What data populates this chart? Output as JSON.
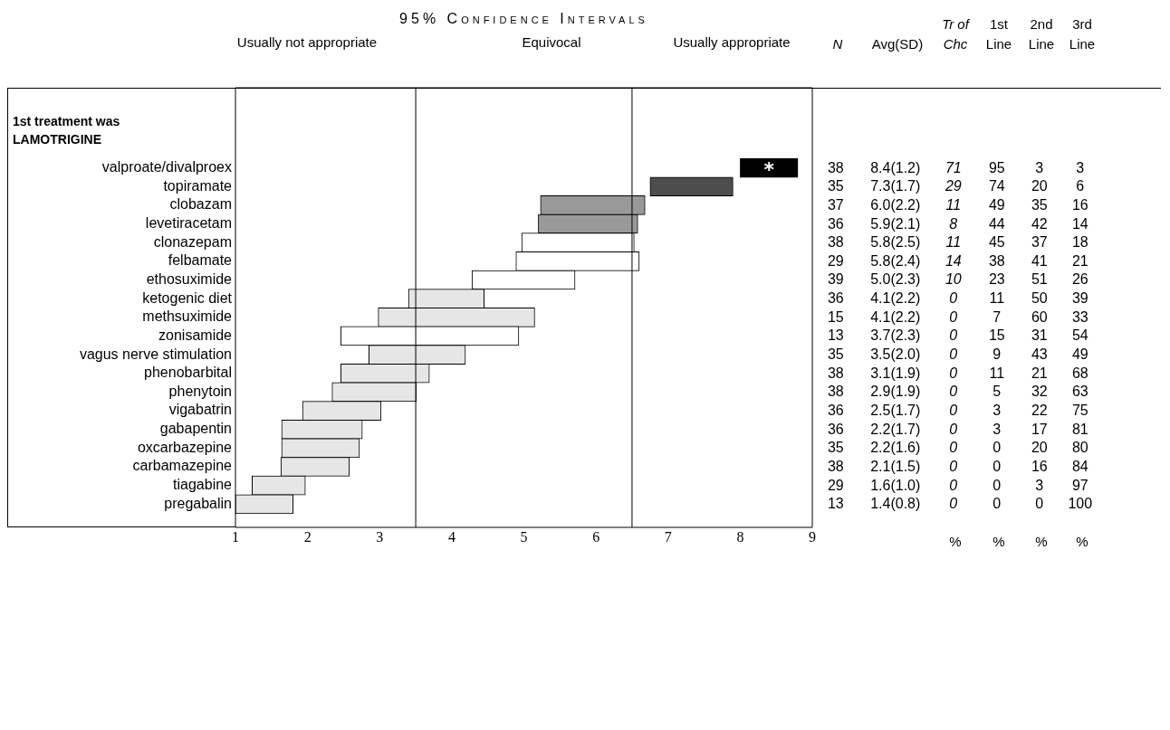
{
  "chart_data": {
    "type": "bar",
    "orientation": "horizontal",
    "title": "95% Confidence Intervals",
    "subtitle": "1st treatment was LAMOTRIGINE",
    "categories": [
      "valproate/divalproex",
      "topiramate",
      "clobazam",
      "levetiracetam",
      "clonazepam",
      "felbamate",
      "ethosuximide",
      "ketogenic diet",
      "methsuximide",
      "zonisamide",
      "vagus nerve stimulation",
      "phenobarbital",
      "phenytoin",
      "vigabatrin",
      "gabapentin",
      "oxcarbazepine",
      "carbamazepine",
      "tiagabine",
      "pregabalin"
    ],
    "base": [
      8.0,
      6.75,
      5.23,
      5.2,
      4.97,
      4.89,
      4.28,
      3.4,
      2.98,
      2.46,
      2.85,
      2.46,
      2.34,
      1.93,
      1.64,
      1.64,
      1.63,
      1.23,
      1.0
    ],
    "values": [
      0.8,
      1.15,
      1.45,
      1.38,
      1.56,
      1.71,
      1.43,
      1.05,
      2.17,
      2.47,
      1.34,
      1.23,
      1.17,
      1.09,
      1.12,
      1.08,
      0.95,
      0.74,
      0.8
    ],
    "colors": [
      "#000000",
      "#4d4d4d",
      "#999999",
      "#999999",
      "#ffffff",
      "#ffffff",
      "#ffffff",
      "#e6e6e6",
      "#e6e6e6",
      "#ffffff",
      "#e6e6e6",
      "#e6e6e6",
      "#e6e6e6",
      "#e6e6e6",
      "#e6e6e6",
      "#e6e6e6",
      "#e6e6e6",
      "#e6e6e6",
      "#e6e6e6"
    ],
    "xlim": [
      1,
      9
    ],
    "xticks": [
      1,
      2,
      3,
      4,
      5,
      6,
      7,
      8,
      9
    ],
    "grid": false,
    "legend": false,
    "ref_lines": [
      {
        "axis": "x",
        "value": 3.5
      },
      {
        "axis": "x",
        "value": 6.5
      }
    ],
    "annotations": [
      "Usually not appropriate",
      "Equivocal",
      "Usually appropriate",
      "N",
      "Avg(SD)",
      "Tr of Chc",
      "1st Line",
      "2nd Line",
      "3rd Line",
      "%",
      "%",
      "%",
      "%",
      {
        "text": "*",
        "x": 8.4,
        "y": "valproate/divalproex"
      },
      "38 8.4(1.2) 71 95 3 3",
      "35 7.3(1.7) 29 74 20 6",
      "37 6.0(2.2) 11 49 35 16",
      "36 5.9(2.1) 8 44 42 14",
      "38 5.8(2.5) 11 45 37 18",
      "29 5.8(2.4) 14 38 41 21",
      "39 5.0(2.3) 10 23 51 26",
      "36 4.1(2.2) 0 11 50 39",
      "15 4.1(2.2) 0 7 60 33",
      "13 3.7(2.3) 0 15 31 54",
      "35 3.5(2.0) 0 9 43 49",
      "38 3.1(1.9) 0 11 21 68",
      "38 2.9(1.9) 0 5 32 63",
      "36 2.5(1.7) 0 3 22 75",
      "36 2.2(1.7) 0 3 17 81",
      "35 2.2(1.6) 0 0 20 80",
      "38 2.1(1.5) 0 0 16 84",
      "29 1.6(1.0) 0 0 3 97",
      "13 1.4(0.8) 0 0 0 100"
    ]
  }
}
